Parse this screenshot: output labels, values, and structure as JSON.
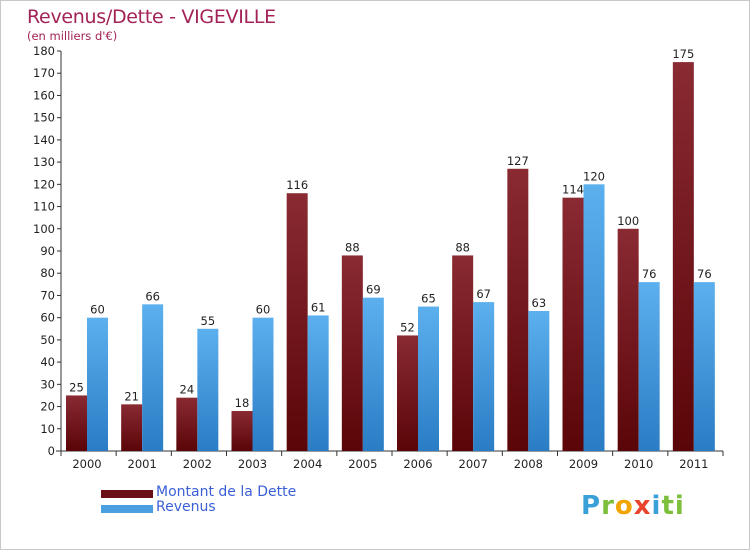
{
  "title": "Revenus/Dette - VIGEVILLE",
  "subtitle": "(en milliers d'€)",
  "logo": {
    "text": "Proxiti",
    "letters": [
      "P",
      "r",
      "o",
      "x",
      "i",
      "ti"
    ]
  },
  "colors": {
    "title": "#a32257",
    "dette": "#7a1b24",
    "revenus": "#4a9fe0",
    "legend_text": "#3b5fd6"
  },
  "legend": [
    {
      "label": "Montant de la Dette",
      "color": "#6b0f16"
    },
    {
      "label": "Revenus",
      "color": "#4a9fe0"
    }
  ],
  "chart_data": {
    "type": "bar",
    "title": "Revenus/Dette - VIGEVILLE",
    "subtitle": "(en milliers d'€)",
    "categories": [
      "2000",
      "2001",
      "2002",
      "2003",
      "2004",
      "2005",
      "2006",
      "2007",
      "2008",
      "2009",
      "2010",
      "2011"
    ],
    "series": [
      {
        "name": "Montant de la Dette",
        "values": [
          25,
          21,
          24,
          18,
          116,
          88,
          52,
          88,
          127,
          114,
          100,
          175
        ]
      },
      {
        "name": "Revenus",
        "values": [
          60,
          66,
          55,
          60,
          61,
          69,
          65,
          67,
          63,
          120,
          76,
          76
        ]
      }
    ],
    "ylim": [
      0,
      180
    ],
    "yticks": [
      0,
      10,
      20,
      30,
      40,
      50,
      60,
      70,
      80,
      90,
      100,
      110,
      120,
      130,
      140,
      150,
      160,
      170,
      180
    ],
    "grid": false,
    "legend_position": "bottom-left"
  }
}
